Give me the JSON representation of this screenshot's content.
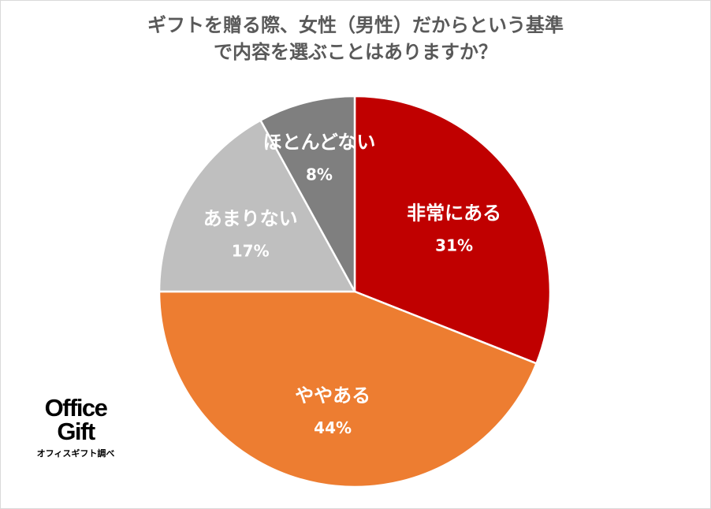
{
  "chart_data": {
    "type": "pie",
    "title_lines": [
      "ギフトを贈る際、女性（男性）だからという基準",
      "で内容を選ぶことはありますか？"
    ],
    "start_angle_deg": 0,
    "direction": "clockwise",
    "slices": [
      {
        "label": "非常にある",
        "value": 31,
        "value_label": "31%",
        "color": "#c00000"
      },
      {
        "label": "ややある",
        "value": 44,
        "value_label": "44%",
        "color": "#ed7d31"
      },
      {
        "label": "あまりない",
        "value": 17,
        "value_label": "17%",
        "color": "#bfbfbf"
      },
      {
        "label": "ほとんどない",
        "value": 8,
        "value_label": "8%",
        "color": "#7f7f7f"
      }
    ]
  },
  "logo": {
    "line1": "Office",
    "line2": "Gift",
    "caption": "オフィスギフト調べ"
  },
  "colors": {
    "title": "#595959",
    "slice_border": "#ffffff",
    "frame_border": "#d9d9d9"
  }
}
